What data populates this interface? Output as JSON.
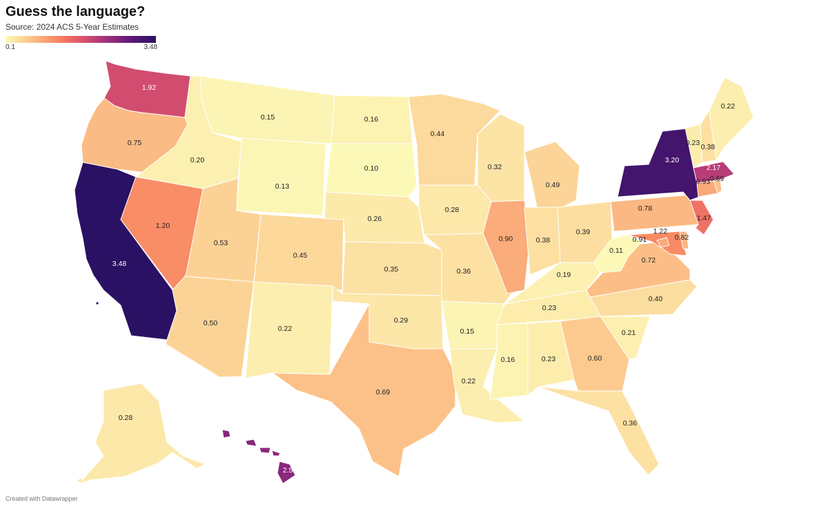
{
  "title": "Guess the language?",
  "subtitle": "Source: 2024 ACS 5-Year Estimates",
  "footer": "Created with Datawrapper",
  "legend": {
    "min_label": "0.1",
    "max_label": "3.48",
    "min": 0.1,
    "max": 3.48,
    "colors": [
      "#fcf9b8",
      "#fcc48a",
      "#f88a64",
      "#e0546a",
      "#a3307e",
      "#5c1978",
      "#2b1163"
    ]
  },
  "chart_data": {
    "type": "choropleth",
    "value_range": [
      0.1,
      3.48
    ],
    "states": [
      {
        "state": "WA",
        "value": 1.92,
        "label": "1.92"
      },
      {
        "state": "OR",
        "value": 0.75,
        "label": "0.75"
      },
      {
        "state": "CA",
        "value": 3.48,
        "label": "3.48"
      },
      {
        "state": "NV",
        "value": 1.2,
        "label": "1.20"
      },
      {
        "state": "ID",
        "value": 0.2,
        "label": "0.20"
      },
      {
        "state": "MT",
        "value": 0.15,
        "label": "0.15"
      },
      {
        "state": "WY",
        "value": 0.13,
        "label": "0.13"
      },
      {
        "state": "UT",
        "value": 0.53,
        "label": "0.53"
      },
      {
        "state": "AZ",
        "value": 0.5,
        "label": "0.50"
      },
      {
        "state": "CO",
        "value": 0.45,
        "label": "0.45"
      },
      {
        "state": "NM",
        "value": 0.22,
        "label": "0.22"
      },
      {
        "state": "ND",
        "value": 0.16,
        "label": "0.16"
      },
      {
        "state": "SD",
        "value": 0.1,
        "label": "0.10"
      },
      {
        "state": "NE",
        "value": 0.26,
        "label": "0.26"
      },
      {
        "state": "KS",
        "value": 0.35,
        "label": "0.35"
      },
      {
        "state": "OK",
        "value": 0.29,
        "label": "0.29"
      },
      {
        "state": "TX",
        "value": 0.69,
        "label": "0.69"
      },
      {
        "state": "MN",
        "value": 0.44,
        "label": "0.44"
      },
      {
        "state": "IA",
        "value": 0.28,
        "label": "0.28"
      },
      {
        "state": "MO",
        "value": 0.36,
        "label": "0.36"
      },
      {
        "state": "AR",
        "value": 0.15,
        "label": "0.15"
      },
      {
        "state": "LA",
        "value": 0.22,
        "label": "0.22"
      },
      {
        "state": "WI",
        "value": 0.32,
        "label": "0.32"
      },
      {
        "state": "IL",
        "value": 0.9,
        "label": "0.90"
      },
      {
        "state": "MI",
        "value": 0.49,
        "label": "0.49"
      },
      {
        "state": "IN",
        "value": 0.38,
        "label": "0.38"
      },
      {
        "state": "OH",
        "value": 0.39,
        "label": "0.39"
      },
      {
        "state": "KY",
        "value": 0.19,
        "label": "0.19"
      },
      {
        "state": "TN",
        "value": 0.23,
        "label": "0.23"
      },
      {
        "state": "MS",
        "value": 0.16,
        "label": "0.16"
      },
      {
        "state": "AL",
        "value": 0.23,
        "label": "0.23"
      },
      {
        "state": "GA",
        "value": 0.6,
        "label": "0.60"
      },
      {
        "state": "FL",
        "value": 0.36,
        "label": "0.36"
      },
      {
        "state": "SC",
        "value": 0.21,
        "label": "0.21"
      },
      {
        "state": "NC",
        "value": 0.4,
        "label": "0.40"
      },
      {
        "state": "VA",
        "value": 0.72,
        "label": "0.72"
      },
      {
        "state": "WV",
        "value": 0.11,
        "label": "0.11"
      },
      {
        "state": "PA",
        "value": 0.78,
        "label": "0.78"
      },
      {
        "state": "NY",
        "value": 3.2,
        "label": "3.20"
      },
      {
        "state": "NJ",
        "value": 1.47,
        "label": "1.47"
      },
      {
        "state": "MD",
        "value": 1.22,
        "label": "1.22"
      },
      {
        "state": "DC",
        "value": 0.91,
        "label": "0.91"
      },
      {
        "state": "DE",
        "value": 0.82,
        "label": "0.82"
      },
      {
        "state": "CT",
        "value": 0.93,
        "label": "0.93"
      },
      {
        "state": "RI",
        "value": 0.69,
        "label": "0.69"
      },
      {
        "state": "MA",
        "value": 2.17,
        "label": "2.17"
      },
      {
        "state": "VT",
        "value": 0.23,
        "label": "0.23"
      },
      {
        "state": "NH",
        "value": 0.38,
        "label": "0.38"
      },
      {
        "state": "ME",
        "value": 0.22,
        "label": "0.22"
      },
      {
        "state": "AK",
        "value": 0.28,
        "label": "0.28"
      },
      {
        "state": "HI",
        "value": 2.55,
        "label": "2.55"
      }
    ]
  }
}
